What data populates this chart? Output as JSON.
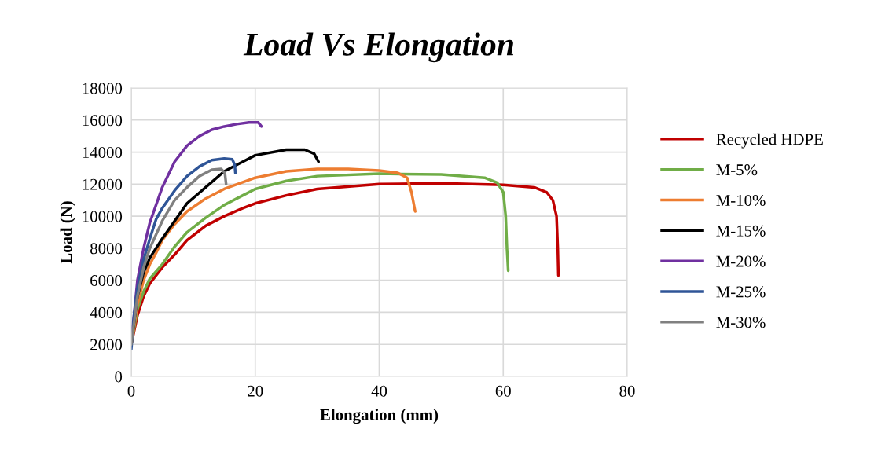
{
  "chart_data": {
    "type": "line",
    "title": "Load Vs Elongation",
    "xlabel": "Elongation (mm)",
    "ylabel": "Load (N)",
    "xlim": [
      0,
      80
    ],
    "xticks": [
      0,
      20,
      40,
      60,
      80
    ],
    "ylim": [
      0,
      18000
    ],
    "yticks": [
      0,
      2000,
      4000,
      6000,
      8000,
      10000,
      12000,
      14000,
      16000,
      18000
    ],
    "grid": true,
    "legend": "right",
    "marker": "none",
    "line_style": "solid",
    "series": [
      {
        "name": "Recycled HDPE",
        "color": "#c00000",
        "x": [
          0,
          1,
          2,
          3,
          5,
          7,
          9,
          12,
          15,
          18,
          20,
          25,
          30,
          40,
          50,
          60,
          65,
          67,
          68,
          68.6,
          68.8,
          68.9
        ],
        "values": [
          2000,
          3800,
          5000,
          5800,
          6800,
          7600,
          8500,
          9400,
          10000,
          10500,
          10800,
          11300,
          11700,
          12000,
          12050,
          11950,
          11800,
          11500,
          11000,
          10000,
          8000,
          6300
        ]
      },
      {
        "name": "M-5%",
        "color": "#70ad47",
        "x": [
          0,
          1,
          2,
          3,
          5,
          7,
          9,
          12,
          15,
          18,
          20,
          25,
          30,
          40,
          50,
          57,
          59,
          60,
          60.4,
          60.6,
          60.8
        ],
        "values": [
          2000,
          4200,
          5300,
          6100,
          7000,
          8100,
          9000,
          9900,
          10700,
          11300,
          11700,
          12200,
          12500,
          12650,
          12600,
          12400,
          12100,
          11500,
          10000,
          8000,
          6600
        ]
      },
      {
        "name": "M-10%",
        "color": "#ed7d31",
        "x": [
          0,
          1,
          2,
          3,
          4,
          5,
          7,
          9,
          12,
          15,
          20,
          25,
          30,
          35,
          40,
          43,
          44.5,
          45.2,
          45.8
        ],
        "values": [
          2000,
          4500,
          6000,
          7000,
          7700,
          8500,
          9500,
          10300,
          11100,
          11700,
          12400,
          12800,
          12950,
          12950,
          12850,
          12700,
          12400,
          11500,
          10300
        ]
      },
      {
        "name": "M-15%",
        "color": "#000000",
        "x": [
          0,
          1,
          2,
          3,
          5,
          7,
          9,
          12,
          15,
          18,
          20,
          25,
          28,
          29.5,
          30.2
        ],
        "values": [
          2000,
          5000,
          6500,
          7400,
          8600,
          9700,
          10800,
          11800,
          12800,
          13400,
          13800,
          14150,
          14150,
          13900,
          13400
        ]
      },
      {
        "name": "M-20%",
        "color": "#7030a0",
        "x": [
          0,
          0.5,
          1,
          2,
          3,
          4,
          5,
          7,
          9,
          11,
          13,
          15,
          17,
          19,
          20.5,
          21
        ],
        "values": [
          2300,
          4000,
          6000,
          8000,
          9600,
          10700,
          11800,
          13400,
          14400,
          15000,
          15400,
          15600,
          15750,
          15850,
          15850,
          15600
        ]
      },
      {
        "name": "M-25%",
        "color": "#2f5597",
        "x": [
          0,
          0.5,
          1,
          2,
          3,
          4,
          5,
          7,
          9,
          11,
          13,
          15,
          16.3,
          16.7,
          16.8
        ],
        "values": [
          1700,
          4000,
          5500,
          7300,
          8600,
          9800,
          10500,
          11600,
          12500,
          13100,
          13500,
          13600,
          13550,
          13200,
          12700
        ]
      },
      {
        "name": "M-30%",
        "color": "#808080",
        "x": [
          0,
          1,
          2,
          3,
          5,
          7,
          9,
          11,
          13,
          14.5,
          15.1,
          15.3
        ],
        "values": [
          2000,
          5000,
          6800,
          8000,
          9700,
          11000,
          11800,
          12500,
          12900,
          12950,
          12700,
          12000
        ]
      }
    ]
  }
}
